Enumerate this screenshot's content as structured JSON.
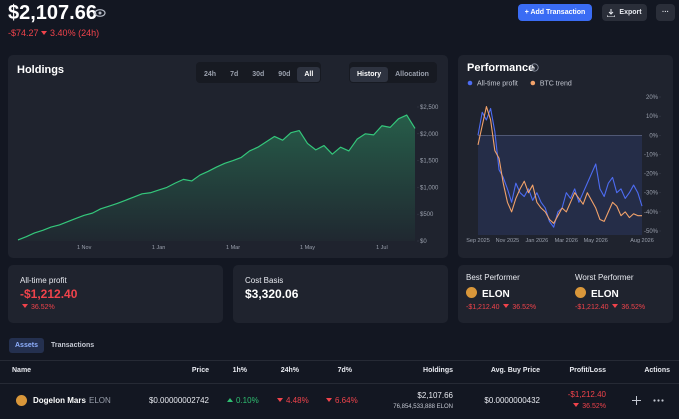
{
  "header": {
    "balance": "$2,107.66",
    "change": "-$74.27",
    "change_pct": "3.40% (24h)"
  },
  "actions": {
    "add": "+ Add Transaction",
    "export": "Export",
    "more": "···"
  },
  "holdings_panel": {
    "ranges": [
      "24h",
      "7d",
      "30d",
      "90d",
      "All"
    ],
    "views": [
      "History",
      "Allocation"
    ]
  },
  "chart_data": [
    {
      "type": "line",
      "title": "Holdings",
      "color": "#34c77b",
      "categories": [
        null,
        null,
        null,
        null,
        null,
        null,
        null,
        null,
        "1 Nov",
        null,
        null,
        null,
        null,
        null,
        null,
        null,
        null,
        "1 Jan",
        null,
        null,
        null,
        null,
        null,
        null,
        null,
        null,
        "1 Mar",
        null,
        null,
        null,
        null,
        null,
        null,
        null,
        null,
        "1 May",
        null,
        null,
        null,
        null,
        null,
        null,
        null,
        null,
        "1 Jul",
        null,
        null,
        null,
        null
      ],
      "values": [
        20,
        80,
        150,
        200,
        260,
        300,
        360,
        420,
        480,
        520,
        600,
        650,
        700,
        760,
        820,
        880,
        900,
        950,
        1000,
        1080,
        1150,
        1120,
        1230,
        1300,
        1380,
        1450,
        1500,
        1560,
        1680,
        1750,
        1850,
        1950,
        1880,
        2020,
        2060,
        1820,
        1700,
        1780,
        1620,
        1750,
        1680,
        1900,
        2000,
        1980,
        2150,
        2120,
        2280,
        2350,
        2100
      ],
      "ylim": [
        0,
        2500
      ],
      "yticks": [
        {
          "value": 0,
          "label": "$0"
        },
        {
          "value": 500,
          "label": "$500"
        },
        {
          "value": 1000,
          "label": "$1,000"
        },
        {
          "value": 1500,
          "label": "$1,500"
        },
        {
          "value": 2000,
          "label": "$2,000"
        },
        {
          "value": 2500,
          "label": "$2,500"
        }
      ]
    },
    {
      "type": "line",
      "title": "Performance",
      "categories": [
        "Sep 2025",
        null,
        null,
        null,
        null,
        null,
        null,
        "Nov 2025",
        null,
        null,
        null,
        null,
        null,
        null,
        "Jan 2026",
        null,
        null,
        null,
        null,
        null,
        null,
        "Mar 2026",
        null,
        null,
        null,
        null,
        null,
        null,
        "May 2026",
        null,
        null,
        null,
        null,
        null,
        null,
        null,
        null,
        null,
        null,
        "Aug 2026"
      ],
      "series": [
        {
          "name": "All-time profit",
          "color": "#4d6cf2",
          "values": [
            0,
            12,
            8,
            14,
            2,
            -18,
            -22,
            -28,
            -35,
            -25,
            -30,
            -32,
            -28,
            -34,
            -30,
            -35,
            -38,
            -45,
            -48,
            -40,
            -38,
            -30,
            -33,
            -28,
            -35,
            -30,
            -25,
            -20,
            -15,
            -28,
            -32,
            -25,
            -22,
            -30,
            -28,
            -33,
            -30,
            -26,
            -30,
            -37
          ]
        },
        {
          "name": "BTC trend",
          "color": "#f2a26a",
          "values": [
            -5,
            5,
            15,
            8,
            -8,
            -12,
            -25,
            -35,
            -40,
            -33,
            -28,
            -24,
            -30,
            -26,
            -35,
            -38,
            -40,
            -44,
            -46,
            -42,
            -38,
            -40,
            -35,
            -30,
            -33,
            -36,
            -30,
            -34,
            -38,
            -44,
            -45,
            -40,
            -35,
            -37,
            -42,
            -40,
            -43,
            -41,
            -42,
            -42
          ]
        }
      ],
      "ylim": [
        -50,
        20
      ],
      "yticks": [
        {
          "value": 20,
          "label": "20%"
        },
        {
          "value": 10,
          "label": "10%"
        },
        {
          "value": 0,
          "label": "0%"
        },
        {
          "value": -10,
          "label": "-10%"
        },
        {
          "value": -20,
          "label": "-20%"
        },
        {
          "value": -30,
          "label": "-30%"
        },
        {
          "value": -40,
          "label": "-40%"
        },
        {
          "value": -50,
          "label": "-50%"
        }
      ]
    }
  ],
  "stats": {
    "profit": {
      "label": "All-time profit",
      "value": "-$1,212.40",
      "pct": "36.52%"
    },
    "cost": {
      "label": "Cost Basis",
      "value": "$3,320.06"
    },
    "best": {
      "label": "Best Performer",
      "symbol": "ELON",
      "value": "-$1,212.40",
      "pct": "36.52%"
    },
    "worst": {
      "label": "Worst Performer",
      "symbol": "ELON",
      "value": "-$1,212.40",
      "pct": "36.52%"
    }
  },
  "tabs": [
    "Assets",
    "Transactions"
  ],
  "table": {
    "headers": [
      "Name",
      "Price",
      "1h%",
      "24h%",
      "7d%",
      "Holdings",
      "Avg. Buy Price",
      "Profit/Loss",
      "Actions"
    ],
    "rows": [
      {
        "name": "Dogelon Mars",
        "symbol": "ELON",
        "price": "$0.00000002742",
        "h1": "0.10%",
        "h24": "4.48%",
        "d7": "6.64%",
        "holdings": "$2,107.66",
        "amount": "76,854,533,888 ELON",
        "avg": "$0.0000000432",
        "pl": "-$1,212.40",
        "pl_pct": "36.52%"
      }
    ]
  }
}
